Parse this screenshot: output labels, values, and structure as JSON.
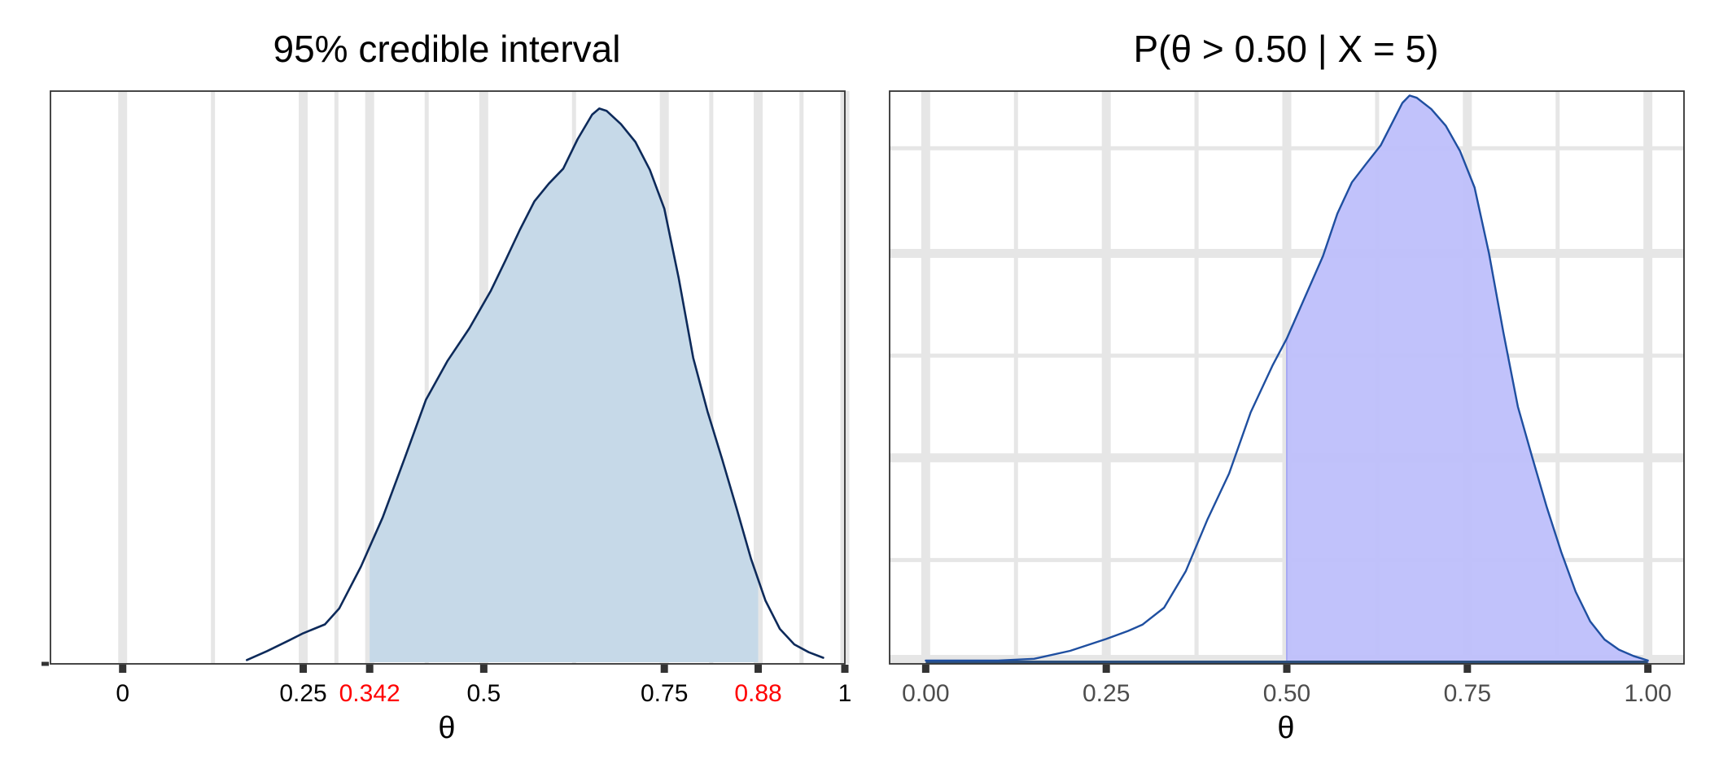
{
  "colors": {
    "grid": "#e6e6e6",
    "panel_border": "#333333",
    "left_fill": "#c6d9e8",
    "left_line": "#0d2a5a",
    "right_fill": "#bcbdfb",
    "right_fill_edge": "#a8aaf3",
    "right_line": "#1f4fa0",
    "right_baseline": "#2c4f7c",
    "tick_mark": "#333333",
    "tick_label_left": "#000000",
    "tick_label_right": "#4d4d4d",
    "highlight": "#ff0000"
  },
  "chart_data": [
    {
      "type": "area",
      "title": "95% credible interval",
      "xlabel": "θ",
      "ylabel": "",
      "xlim": [
        -0.1,
        1.0
      ],
      "ylim": [
        0,
        1
      ],
      "grid": "vertical",
      "ticks": [
        {
          "value": 0,
          "label": "0",
          "highlight": false
        },
        {
          "value": 0.25,
          "label": "0.25",
          "highlight": false
        },
        {
          "value": 0.342,
          "label": "0.342",
          "highlight": true
        },
        {
          "value": 0.5,
          "label": "0.5",
          "highlight": false
        },
        {
          "value": 0.75,
          "label": "0.75",
          "highlight": false
        },
        {
          "value": 0.88,
          "label": "0.88",
          "highlight": true
        },
        {
          "value": 1,
          "label": "1",
          "highlight": false
        }
      ],
      "gridlines_major": [
        0,
        0.25,
        0.342,
        0.5,
        0.75,
        0.88,
        1
      ],
      "gridlines_minor": [
        0.125,
        0.296,
        0.421,
        0.625,
        0.815,
        0.94
      ],
      "shaded_interval": [
        0.342,
        0.88
      ],
      "density": {
        "x": [
          0.172,
          0.2,
          0.23,
          0.25,
          0.28,
          0.3,
          0.33,
          0.36,
          0.39,
          0.42,
          0.45,
          0.48,
          0.51,
          0.53,
          0.55,
          0.57,
          0.59,
          0.61,
          0.63,
          0.65,
          0.66,
          0.67,
          0.69,
          0.71,
          0.73,
          0.75,
          0.77,
          0.79,
          0.81,
          0.83,
          0.85,
          0.87,
          0.89,
          0.91,
          0.93,
          0.95,
          0.97
        ],
        "y": [
          0.004,
          0.02,
          0.039,
          0.052,
          0.068,
          0.097,
          0.172,
          0.26,
          0.365,
          0.472,
          0.542,
          0.6,
          0.668,
          0.722,
          0.777,
          0.828,
          0.86,
          0.887,
          0.94,
          0.984,
          0.995,
          0.991,
          0.967,
          0.935,
          0.885,
          0.815,
          0.69,
          0.547,
          0.45,
          0.365,
          0.277,
          0.186,
          0.111,
          0.06,
          0.032,
          0.018,
          0.008
        ]
      }
    },
    {
      "type": "area",
      "title": "P(θ > 0.50 | X = 5)",
      "xlabel": "θ",
      "ylabel": "",
      "xlim": [
        -0.05,
        1.05
      ],
      "ylim": [
        0,
        1
      ],
      "grid": "both",
      "ticks": [
        {
          "value": 0.0,
          "label": "0.00"
        },
        {
          "value": 0.25,
          "label": "0.25"
        },
        {
          "value": 0.5,
          "label": "0.50"
        },
        {
          "value": 0.75,
          "label": "0.75"
        },
        {
          "value": 1.0,
          "label": "1.00"
        }
      ],
      "gridlines_major_x": [
        0,
        0.25,
        0.5,
        0.75,
        1
      ],
      "gridlines_minor_x": [
        0.125,
        0.375,
        0.625,
        0.875
      ],
      "gridlines_major_y": [
        0.005,
        0.36,
        0.72
      ],
      "gridlines_minor_y": [
        0.18,
        0.54,
        0.905
      ],
      "shade_from": 0.5,
      "density": {
        "x": [
          0.0,
          0.05,
          0.1,
          0.15,
          0.2,
          0.25,
          0.28,
          0.3,
          0.33,
          0.36,
          0.39,
          0.42,
          0.45,
          0.48,
          0.5,
          0.52,
          0.55,
          0.57,
          0.59,
          0.61,
          0.63,
          0.65,
          0.66,
          0.67,
          0.68,
          0.7,
          0.72,
          0.74,
          0.76,
          0.78,
          0.8,
          0.82,
          0.84,
          0.86,
          0.88,
          0.9,
          0.92,
          0.94,
          0.96,
          0.98,
          1.0
        ],
        "y": [
          0.003,
          0.003,
          0.003,
          0.006,
          0.02,
          0.041,
          0.055,
          0.066,
          0.096,
          0.16,
          0.251,
          0.332,
          0.44,
          0.522,
          0.57,
          0.628,
          0.715,
          0.79,
          0.845,
          0.878,
          0.91,
          0.96,
          0.985,
          0.998,
          0.994,
          0.974,
          0.945,
          0.9,
          0.836,
          0.72,
          0.58,
          0.45,
          0.36,
          0.273,
          0.194,
          0.124,
          0.072,
          0.04,
          0.022,
          0.011,
          0.003
        ]
      }
    }
  ]
}
